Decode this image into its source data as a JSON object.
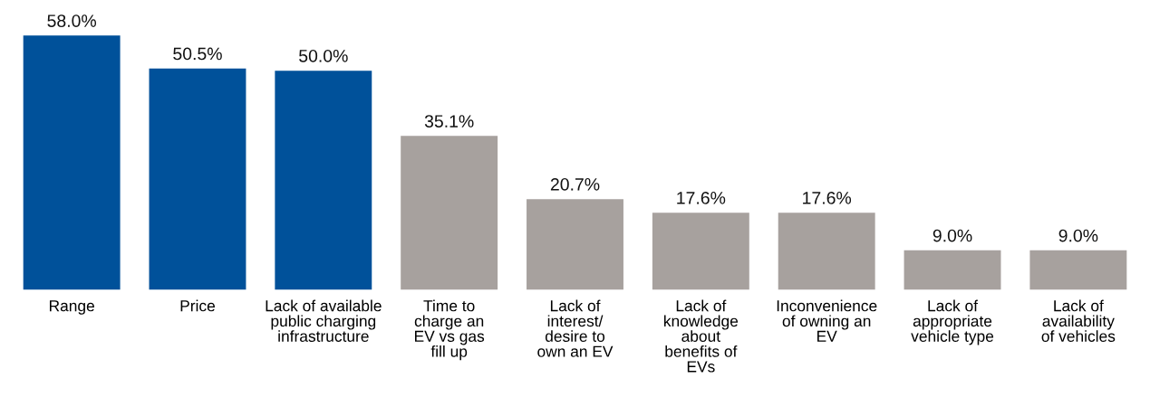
{
  "chart_data": {
    "type": "bar",
    "categories": [
      "Range",
      "Price",
      "Lack of available\npublic charging\ninfrastructure",
      "Time to\ncharge an\nEV vs gas\nfill up",
      "Lack of\ninterest/\ndesire to\nown an EV",
      "Lack of\nknowledge\nabout\nbenefits of\nEVs",
      "Inconvenience\nof owning an\nEV",
      "Lack of\nappropriate\nvehicle type",
      "Lack of\navailability\nof vehicles"
    ],
    "values": [
      58.0,
      50.5,
      50.0,
      35.1,
      20.7,
      17.6,
      17.6,
      9.0,
      9.0
    ],
    "colors": [
      "#00519a",
      "#00519a",
      "#00519a",
      "#a7a19e",
      "#a7a19e",
      "#a7a19e",
      "#a7a19e",
      "#a7a19e",
      "#a7a19e"
    ],
    "value_labels": [
      "58.0%",
      "50.5%",
      "50.0%",
      "35.1%",
      "20.7%",
      "17.6%",
      "17.6%",
      "9.0%",
      "9.0%"
    ],
    "grid": false,
    "legend": false
  }
}
